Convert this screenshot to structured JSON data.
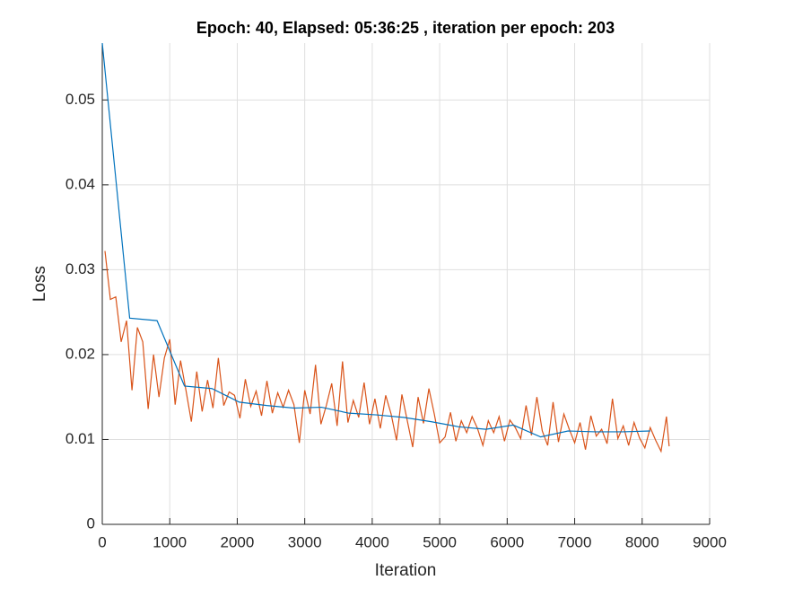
{
  "chart_data": {
    "type": "line",
    "title": "Epoch: 40, Elapsed: 05:36:25  , iteration per epoch: 203",
    "xlabel": "Iteration",
    "ylabel": "Loss",
    "xlim": [
      0,
      9000
    ],
    "xticks": [
      0,
      1000,
      2000,
      3000,
      4000,
      5000,
      6000,
      7000,
      8000,
      9000
    ],
    "ylim": [
      0,
      0.0567
    ],
    "yticks": [
      0,
      0.01,
      0.02,
      0.03,
      0.04,
      0.05
    ],
    "grid": true,
    "series": [
      {
        "color": "#d95319",
        "x": [
          40,
          120,
          200,
          280,
          360,
          440,
          520,
          600,
          680,
          760,
          840,
          920,
          1000,
          1080,
          1160,
          1240,
          1320,
          1400,
          1480,
          1560,
          1640,
          1720,
          1800,
          1880,
          1960,
          2040,
          2120,
          2200,
          2280,
          2360,
          2440,
          2520,
          2600,
          2680,
          2760,
          2840,
          2920,
          3000,
          3080,
          3160,
          3240,
          3320,
          3400,
          3480,
          3560,
          3640,
          3720,
          3800,
          3880,
          3960,
          4040,
          4120,
          4200,
          4280,
          4360,
          4440,
          4520,
          4600,
          4680,
          4760,
          4840,
          4920,
          5000,
          5080,
          5160,
          5240,
          5320,
          5400,
          5480,
          5560,
          5640,
          5720,
          5800,
          5880,
          5960,
          6040,
          6120,
          6200,
          6280,
          6360,
          6440,
          6520,
          6600,
          6680,
          6760,
          6840,
          6920,
          7000,
          7080,
          7160,
          7240,
          7320,
          7400,
          7480,
          7560,
          7640,
          7720,
          7800,
          7880,
          7960,
          8040,
          8120,
          8200,
          8280,
          8360,
          8400
        ],
        "values": [
          0.0322,
          0.0265,
          0.0268,
          0.0215,
          0.024,
          0.0158,
          0.0232,
          0.0215,
          0.0136,
          0.02,
          0.015,
          0.0196,
          0.0218,
          0.0141,
          0.0193,
          0.0158,
          0.0121,
          0.018,
          0.0133,
          0.017,
          0.0137,
          0.0196,
          0.014,
          0.0156,
          0.0152,
          0.0125,
          0.0171,
          0.0139,
          0.0157,
          0.0128,
          0.0169,
          0.0131,
          0.0155,
          0.0138,
          0.0158,
          0.0141,
          0.0096,
          0.0158,
          0.013,
          0.0188,
          0.0118,
          0.014,
          0.0166,
          0.0116,
          0.0192,
          0.012,
          0.0146,
          0.0126,
          0.0167,
          0.0118,
          0.0148,
          0.0113,
          0.0152,
          0.013,
          0.0099,
          0.0153,
          0.0122,
          0.0091,
          0.015,
          0.0119,
          0.016,
          0.013,
          0.0096,
          0.0103,
          0.0132,
          0.0098,
          0.0122,
          0.0108,
          0.0127,
          0.0113,
          0.0093,
          0.0122,
          0.0108,
          0.0127,
          0.0098,
          0.0123,
          0.0114,
          0.0101,
          0.014,
          0.0105,
          0.015,
          0.011,
          0.0093,
          0.0144,
          0.0097,
          0.013,
          0.0112,
          0.0096,
          0.012,
          0.0088,
          0.0128,
          0.0104,
          0.0112,
          0.0095,
          0.0148,
          0.0101,
          0.0116,
          0.0093,
          0.012,
          0.0102,
          0.009,
          0.0114,
          0.0099,
          0.0086,
          0.0127,
          0.0092
        ]
      },
      {
        "color": "#0072bd",
        "x": [
          0,
          406,
          812,
          1218,
          1624,
          2030,
          2436,
          2842,
          3248,
          3654,
          4060,
          4466,
          4872,
          5278,
          5684,
          6090,
          6496,
          6902,
          7308,
          7714,
          8120
        ],
        "values": [
          0.0567,
          0.0243,
          0.024,
          0.0163,
          0.016,
          0.0144,
          0.014,
          0.0137,
          0.0138,
          0.0131,
          0.0129,
          0.0126,
          0.0121,
          0.0115,
          0.0112,
          0.0117,
          0.0103,
          0.011,
          0.0109,
          0.0109,
          0.011
        ]
      }
    ]
  }
}
